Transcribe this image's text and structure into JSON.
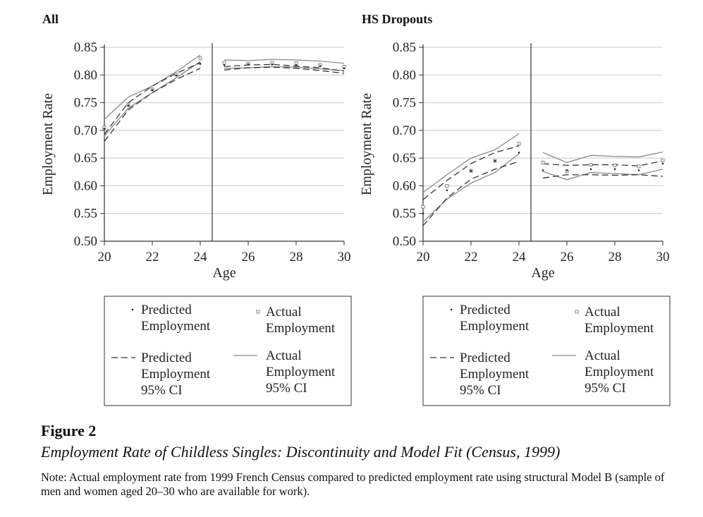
{
  "figure": {
    "label": "Figure 2",
    "title": "Employment Rate of Childless Singles: Discontinuity and Model Fit (Census, 1999)",
    "note": "Note: Actual employment rate from 1999 French Census compared to predicted employment rate using structural Model B (sample of men and women aged 20–30 who are available for work)."
  },
  "legend": {
    "items": [
      {
        "key": "predicted",
        "label_lines": [
          "Predicted",
          "Employment"
        ]
      },
      {
        "key": "actual",
        "label_lines": [
          "Actual",
          "Employment"
        ]
      },
      {
        "key": "predicted_ci",
        "label_lines": [
          "Predicted",
          "Employment",
          "95% CI"
        ]
      },
      {
        "key": "actual_ci",
        "label_lines": [
          "Actual",
          "Employment",
          "95% CI"
        ]
      }
    ]
  },
  "chart_data": [
    {
      "type": "line",
      "title": "All",
      "xlabel": "Age",
      "ylabel": "Employment Rate",
      "xlim": [
        20,
        30
      ],
      "ylim": [
        0.5,
        0.85
      ],
      "xticks": [
        20,
        22,
        24,
        26,
        28,
        30
      ],
      "yticks": [
        0.5,
        0.55,
        0.6,
        0.65,
        0.7,
        0.75,
        0.8,
        0.85
      ],
      "grid": true,
      "discontinuity_at": 24.5,
      "series": {
        "predicted": {
          "x": [
            20,
            21,
            22,
            23,
            24,
            25,
            26,
            27,
            28,
            29,
            30
          ],
          "y": [
            0.703,
            0.745,
            0.773,
            0.799,
            0.82,
            0.818,
            0.819,
            0.819,
            0.818,
            0.816,
            0.812
          ]
        },
        "actual": {
          "x": [
            20,
            21,
            22,
            23,
            24,
            25,
            26,
            27,
            28,
            29,
            30
          ],
          "y": [
            0.705,
            0.746,
            0.774,
            0.801,
            0.83,
            0.822,
            0.82,
            0.822,
            0.821,
            0.818,
            0.815
          ]
        },
        "predicted_ci_low": {
          "x": [
            20,
            21,
            22,
            23,
            24,
            25,
            26,
            27,
            28,
            29,
            30
          ],
          "y": [
            0.68,
            0.737,
            0.768,
            0.792,
            0.812,
            0.809,
            0.813,
            0.814,
            0.812,
            0.808,
            0.803
          ]
        },
        "predicted_ci_high": {
          "x": [
            20,
            21,
            22,
            23,
            24,
            25,
            26,
            27,
            28,
            29,
            30
          ],
          "y": [
            0.693,
            0.75,
            0.78,
            0.803,
            0.822,
            0.815,
            0.818,
            0.819,
            0.816,
            0.813,
            0.807
          ]
        },
        "actual_ci_low": {
          "x": [
            20,
            21,
            22,
            23,
            24,
            25,
            26,
            27,
            28,
            29,
            30
          ],
          "y": [
            0.69,
            0.74,
            0.768,
            0.795,
            0.824,
            0.812,
            0.813,
            0.815,
            0.814,
            0.811,
            0.808
          ]
        },
        "actual_ci_high": {
          "x": [
            20,
            21,
            22,
            23,
            24,
            25,
            26,
            27,
            28,
            29,
            30
          ],
          "y": [
            0.72,
            0.76,
            0.78,
            0.806,
            0.836,
            0.827,
            0.826,
            0.828,
            0.827,
            0.825,
            0.821
          ]
        }
      }
    },
    {
      "type": "line",
      "title": "HS Dropouts",
      "xlabel": "Age",
      "ylabel": "Employment Rate",
      "xlim": [
        20,
        30
      ],
      "ylim": [
        0.5,
        0.85
      ],
      "xticks": [
        20,
        22,
        24,
        26,
        28,
        30
      ],
      "yticks": [
        0.5,
        0.55,
        0.6,
        0.65,
        0.7,
        0.75,
        0.8,
        0.85
      ],
      "grid": true,
      "discontinuity_at": 24.5,
      "series": {
        "predicted": {
          "x": [
            20,
            21,
            22,
            23,
            24,
            25,
            26,
            27,
            28,
            29,
            30
          ],
          "y": [
            0.55,
            0.592,
            0.627,
            0.645,
            0.66,
            0.628,
            0.628,
            0.63,
            0.63,
            0.628,
            0.64
          ]
        },
        "actual": {
          "x": [
            20,
            21,
            22,
            23,
            24,
            25,
            26,
            27,
            28,
            29,
            30
          ],
          "y": [
            0.562,
            0.6,
            0.627,
            0.645,
            0.676,
            0.642,
            0.626,
            0.638,
            0.637,
            0.635,
            0.646
          ]
        },
        "predicted_ci_low": {
          "x": [
            20,
            21,
            22,
            23,
            24,
            25,
            26,
            27,
            28,
            29,
            30
          ],
          "y": [
            0.528,
            0.578,
            0.612,
            0.63,
            0.644,
            0.614,
            0.62,
            0.62,
            0.619,
            0.62,
            0.617
          ]
        },
        "predicted_ci_high": {
          "x": [
            20,
            21,
            22,
            23,
            24,
            25,
            26,
            27,
            28,
            29,
            30
          ],
          "y": [
            0.575,
            0.61,
            0.64,
            0.66,
            0.672,
            0.64,
            0.637,
            0.638,
            0.638,
            0.636,
            0.645
          ]
        },
        "actual_ci_low": {
          "x": [
            20,
            21,
            22,
            23,
            24,
            25,
            26,
            27,
            28,
            29,
            30
          ],
          "y": [
            0.535,
            0.576,
            0.605,
            0.624,
            0.658,
            0.626,
            0.611,
            0.624,
            0.622,
            0.62,
            0.63
          ]
        },
        "actual_ci_high": {
          "x": [
            20,
            21,
            22,
            23,
            24,
            25,
            26,
            27,
            28,
            29,
            30
          ],
          "y": [
            0.588,
            0.62,
            0.65,
            0.665,
            0.694,
            0.66,
            0.642,
            0.655,
            0.653,
            0.652,
            0.661
          ]
        }
      }
    }
  ]
}
